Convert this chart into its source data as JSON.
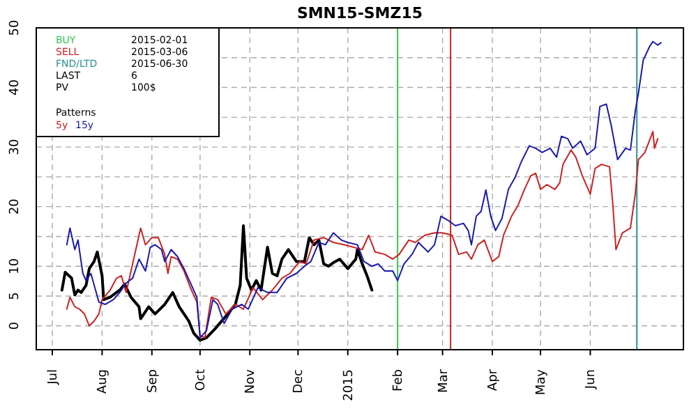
{
  "chart_data": {
    "type": "line",
    "title": "SMN15-SMZ15",
    "legend_title": "Patterns",
    "legend": "top left",
    "grid": true,
    "line_style": "solid",
    "xlim": [
      "2014-06-21",
      "2015-07-29"
    ],
    "xticks": [
      {
        "value": "2014-07-01",
        "label": "Jul"
      },
      {
        "value": "2014-08-01",
        "label": "Aug"
      },
      {
        "value": "2014-09-01",
        "label": "Sep"
      },
      {
        "value": "2014-10-01",
        "label": "Oct"
      },
      {
        "value": "2014-11-01",
        "label": "Nov"
      },
      {
        "value": "2014-12-01",
        "label": "Dec"
      },
      {
        "value": "2015-01-01",
        "label": "2015"
      },
      {
        "value": "2015-02-01",
        "label": "Feb"
      },
      {
        "value": "2015-03-01",
        "label": "Mar"
      },
      {
        "value": "2015-04-01",
        "label": "Apr"
      },
      {
        "value": "2015-05-01",
        "label": "May"
      },
      {
        "value": "2015-06-01",
        "label": "Jun"
      }
    ],
    "ylim": [
      -4,
      50
    ],
    "yticks": [
      0,
      5,
      10,
      {
        "value": 15,
        "label": null
      },
      20,
      {
        "value": 25,
        "label": null
      },
      30,
      {
        "value": 35,
        "label": null
      },
      40,
      {
        "value": 45,
        "label": null
      },
      50
    ],
    "ref_lines": [
      {
        "axis": "x",
        "value": "2015-02-01",
        "color": "#33cc55"
      },
      {
        "axis": "x",
        "value": "2015-03-06",
        "color": "#cc2222"
      },
      {
        "axis": "x",
        "value": "2015-06-30",
        "color": "#2a9090"
      }
    ],
    "annotations": [
      "BUY 2015-02-01",
      "SELL 2015-03-06",
      "FND/LTD 2015-06-30",
      "LAST 6",
      "PV 100$"
    ],
    "series": [
      {
        "color": "#000000",
        "x": [
          "2014-07-07",
          "2014-07-09",
          "2014-07-13",
          "2014-07-15",
          "2014-07-17",
          "2014-07-19",
          "2014-07-22",
          "2014-07-24",
          "2014-07-27",
          "2014-07-29",
          "2014-08-01",
          "2014-08-02",
          "2014-08-06",
          "2014-08-12",
          "2014-08-15",
          "2014-08-19",
          "2014-08-24",
          "2014-08-25",
          "2014-08-30",
          "2014-09-03",
          "2014-09-09",
          "2014-09-14",
          "2014-09-18",
          "2014-09-24",
          "2014-09-27",
          "2014-10-01",
          "2014-10-05",
          "2014-10-10",
          "2014-10-17",
          "2014-10-23",
          "2014-10-26",
          "2014-10-28",
          "2014-10-30",
          "2014-11-02",
          "2014-11-05",
          "2014-11-08",
          "2014-11-12",
          "2014-11-15",
          "2014-11-18",
          "2014-11-21",
          "2014-11-25",
          "2014-11-30",
          "2014-12-05",
          "2014-12-08",
          "2014-12-11",
          "2014-12-14",
          "2014-12-17",
          "2014-12-20",
          "2014-12-23",
          "2014-12-27",
          "2015-01-01",
          "2015-01-06",
          "2015-01-07",
          "2015-01-10",
          "2015-01-13",
          "2015-01-16"
        ],
        "values": [
          6.0,
          9.0,
          8.0,
          5.2,
          6.0,
          5.6,
          6.8,
          9.6,
          10.8,
          12.4,
          8.4,
          4.4,
          4.8,
          6.0,
          7.0,
          4.8,
          3.2,
          1.2,
          3.2,
          2.0,
          3.6,
          5.6,
          3.2,
          0.8,
          -1.2,
          -2.4,
          -2.0,
          -0.6,
          1.6,
          3.6,
          6.8,
          16.8,
          8.0,
          6.0,
          7.6,
          6.0,
          13.2,
          8.8,
          8.4,
          11.2,
          12.8,
          10.8,
          10.8,
          14.8,
          13.6,
          14.4,
          10.4,
          10.0,
          10.6,
          11.2,
          9.6,
          11.2,
          12.8,
          10.4,
          8.4,
          6.0
        ]
      },
      {
        "name": "5y",
        "color": "#cc2222",
        "x": [
          "2014-07-10",
          "2014-07-12",
          "2014-07-15",
          "2014-07-18",
          "2014-07-21",
          "2014-07-24",
          "2014-07-27",
          "2014-07-30",
          "2014-08-01",
          "2014-08-06",
          "2014-08-10",
          "2014-08-13",
          "2014-08-16",
          "2014-08-20",
          "2014-08-25",
          "2014-08-28",
          "2014-09-01",
          "2014-09-05",
          "2014-09-09",
          "2014-09-11",
          "2014-09-13",
          "2014-09-17",
          "2014-09-21",
          "2014-09-25",
          "2014-09-29",
          "2014-10-01",
          "2014-10-04",
          "2014-10-08",
          "2014-10-12",
          "2014-10-17",
          "2014-10-23",
          "2014-10-28",
          "2014-11-03",
          "2014-11-09",
          "2014-11-15",
          "2014-11-21",
          "2014-11-26",
          "2014-12-02",
          "2014-12-06",
          "2014-12-11",
          "2014-12-17",
          "2014-12-23",
          "2014-12-30",
          "2015-01-10",
          "2015-01-14",
          "2015-01-18",
          "2015-01-24",
          "2015-01-29",
          "2015-02-02",
          "2015-02-08",
          "2015-02-12",
          "2015-02-18",
          "2015-02-24",
          "2015-03-01",
          "2015-03-07",
          "2015-03-11",
          "2015-03-16",
          "2015-03-19",
          "2015-03-23",
          "2015-03-27",
          "2015-04-01",
          "2015-04-05",
          "2015-04-08",
          "2015-04-13",
          "2015-04-17",
          "2015-04-21",
          "2015-04-25",
          "2015-04-28",
          "2015-05-01",
          "2015-05-05",
          "2015-05-10",
          "2015-05-13",
          "2015-05-15",
          "2015-05-20",
          "2015-05-23",
          "2015-05-27",
          "2015-06-01",
          "2015-06-04",
          "2015-06-08",
          "2015-06-13",
          "2015-06-15",
          "2015-06-17",
          "2015-06-21",
          "2015-06-26",
          "2015-06-29",
          "2015-07-01",
          "2015-07-05",
          "2015-07-10",
          "2015-07-11",
          "2015-07-13"
        ],
        "values": [
          2.8,
          4.8,
          3.2,
          2.8,
          2.0,
          0,
          0.8,
          2.0,
          4.4,
          6.0,
          8.0,
          8.4,
          5.6,
          10.4,
          16.4,
          13.6,
          14.8,
          14.8,
          12.0,
          8.8,
          11.6,
          11.2,
          9.2,
          6.4,
          4.0,
          -1.6,
          -2.0,
          4.8,
          4.4,
          2.0,
          3.6,
          2.8,
          6.4,
          4.4,
          6.0,
          8.0,
          8.8,
          10.8,
          10.4,
          14.4,
          14.8,
          14.0,
          13.6,
          12.8,
          15.2,
          12.4,
          12.0,
          11.2,
          12.0,
          14.4,
          14.0,
          15.2,
          15.6,
          15.6,
          15.2,
          12.0,
          12.4,
          11.2,
          13.6,
          14.4,
          10.8,
          11.6,
          15.2,
          18.4,
          20.2,
          22.9,
          25.2,
          25.6,
          22.9,
          23.7,
          22.9,
          24.0,
          27.1,
          29.5,
          28.3,
          25.2,
          22.1,
          26.4,
          27.1,
          26.7,
          20.5,
          12.8,
          15.6,
          16.4,
          22.1,
          27.9,
          29.1,
          32.6,
          29.8,
          31.4
        ]
      },
      {
        "name": "15y",
        "color": "#1a1aaa",
        "x": [
          "2014-07-10",
          "2014-07-12",
          "2014-07-15",
          "2014-07-17",
          "2014-07-20",
          "2014-07-22",
          "2014-07-25",
          "2014-07-30",
          "2014-08-03",
          "2014-08-08",
          "2014-08-12",
          "2014-08-16",
          "2014-08-20",
          "2014-08-24",
          "2014-08-28",
          "2014-08-31",
          "2014-09-03",
          "2014-09-07",
          "2014-09-09",
          "2014-09-13",
          "2014-09-17",
          "2014-09-21",
          "2014-09-25",
          "2014-09-29",
          "2014-10-01",
          "2014-10-05",
          "2014-10-09",
          "2014-10-12",
          "2014-10-16",
          "2014-10-21",
          "2014-10-27",
          "2014-10-31",
          "2014-11-06",
          "2014-11-12",
          "2014-11-18",
          "2014-11-24",
          "2014-11-30",
          "2014-12-05",
          "2014-12-09",
          "2014-12-14",
          "2014-12-18",
          "2014-12-23",
          "2014-12-28",
          "2015-01-01",
          "2015-01-07",
          "2015-01-11",
          "2015-01-16",
          "2015-01-20",
          "2015-01-24",
          "2015-01-29",
          "2015-02-01",
          "2015-02-05",
          "2015-02-10",
          "2015-02-14",
          "2015-02-20",
          "2015-02-24",
          "2015-02-28",
          "2015-03-05",
          "2015-03-09",
          "2015-03-14",
          "2015-03-17",
          "2015-03-19",
          "2015-03-22",
          "2015-03-25",
          "2015-03-28",
          "2015-03-31",
          "2015-04-03",
          "2015-04-07",
          "2015-04-11",
          "2015-04-15",
          "2015-04-19",
          "2015-04-24",
          "2015-04-28",
          "2015-05-02",
          "2015-05-07",
          "2015-05-11",
          "2015-05-14",
          "2015-05-18",
          "2015-05-21",
          "2015-05-26",
          "2015-05-30",
          "2015-06-04",
          "2015-06-07",
          "2015-06-11",
          "2015-06-14",
          "2015-06-18",
          "2015-06-23",
          "2015-06-26",
          "2015-06-29",
          "2015-07-01",
          "2015-07-04",
          "2015-07-08",
          "2015-07-10",
          "2015-07-13",
          "2015-07-15"
        ],
        "values": [
          13.6,
          16.4,
          12.8,
          14.4,
          8.8,
          7.6,
          8.8,
          4.0,
          3.6,
          4.4,
          5.6,
          7.2,
          8.0,
          11.2,
          9.2,
          13.2,
          13.6,
          12.8,
          10.8,
          12.8,
          11.6,
          9.6,
          7.2,
          4.8,
          -2.0,
          -0.8,
          4.4,
          3.6,
          0.4,
          2.8,
          3.6,
          2.8,
          6.4,
          5.6,
          5.6,
          8.0,
          8.8,
          10.0,
          10.8,
          14.0,
          13.6,
          15.6,
          14.4,
          14.0,
          13.6,
          10.8,
          10.0,
          10.4,
          9.2,
          9.2,
          7.6,
          10.4,
          12.0,
          14.0,
          12.4,
          13.6,
          18.4,
          17.6,
          16.8,
          17.2,
          16.0,
          13.6,
          18.4,
          19.2,
          22.8,
          18.4,
          16.0,
          18.0,
          22.9,
          24.8,
          27.5,
          30.2,
          29.8,
          29.1,
          29.8,
          28.3,
          31.8,
          31.4,
          29.8,
          31.0,
          28.7,
          29.8,
          36.8,
          37.2,
          33.7,
          27.9,
          29.8,
          29.5,
          36.0,
          39.1,
          44.6,
          46.9,
          47.7,
          47.1,
          47.5
        ]
      }
    ]
  }
}
